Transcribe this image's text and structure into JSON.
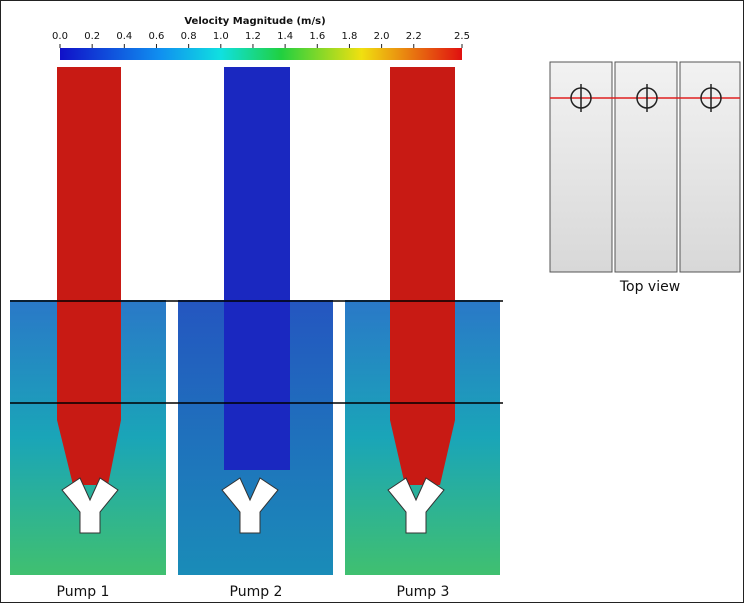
{
  "colorbar": {
    "title": "Velocity Magnitude (m/s)",
    "range": [
      0,
      2.5
    ],
    "ticks": [
      {
        "value": 0,
        "label": "0.0"
      },
      {
        "value": 0.2,
        "label": "0.2"
      },
      {
        "value": 0.4,
        "label": "0.4"
      },
      {
        "value": 0.6,
        "label": "0.6"
      },
      {
        "value": 0.8,
        "label": "0.8"
      },
      {
        "value": 1,
        "label": "1.0"
      },
      {
        "value": 1.2,
        "label": "1.2"
      },
      {
        "value": 1.4,
        "label": "1.4"
      },
      {
        "value": 1.6,
        "label": "1.6"
      },
      {
        "value": 1.8,
        "label": "1.8"
      },
      {
        "value": 2,
        "label": "2.0"
      },
      {
        "value": 2.2,
        "label": "2.2"
      },
      2.5
    ]
  },
  "panels": [
    {
      "label": "Pump 1"
    },
    {
      "label": "Pump 2"
    },
    {
      "label": "Pump 3"
    }
  ],
  "top_view": {
    "label": "Top view"
  }
}
